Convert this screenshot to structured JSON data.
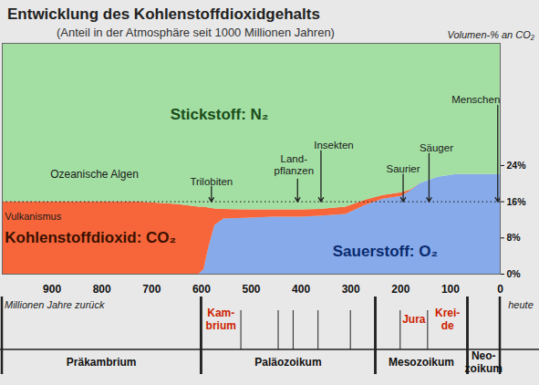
{
  "chart_data": {
    "type": "area",
    "title": "Entwicklung des Kohlenstoffdioxidgehalts",
    "subtitle": "(Anteil in der Atmosphäre seit 1000 Millionen Jahren)",
    "xlabel": "Millionen Jahre zurück",
    "ylabel": "Volumen-% an CO₂",
    "stacked": true,
    "grid": false,
    "x": [
      1000,
      900,
      800,
      730,
      650,
      605,
      595,
      585,
      573,
      555,
      500,
      455,
      400,
      363,
      310,
      270,
      235,
      198,
      180,
      161,
      125,
      88,
      0
    ],
    "xlim": [
      1000,
      0
    ],
    "xticks": [
      900,
      800,
      700,
      600,
      500,
      400,
      300,
      200,
      100,
      0
    ],
    "ylim": [
      0,
      51
    ],
    "yticks": [
      {
        "value": 0,
        "label": "0%"
      },
      {
        "value": 8,
        "label": "8%"
      },
      {
        "value": 16,
        "label": "16%"
      },
      {
        "value": 24,
        "label": "24%"
      }
    ],
    "series": [
      {
        "name": "Sauerstoff: O₂",
        "color": "#86aaea",
        "values": [
          0,
          0,
          0,
          0,
          0,
          0,
          1,
          6,
          10.8,
          12.2,
          12.4,
          12.6,
          12.6,
          12.8,
          13.2,
          15.2,
          16.6,
          17.2,
          18.4,
          20,
          21.4,
          22,
          22
        ]
      },
      {
        "name": "Kohlenstoffdioxid: CO₂",
        "color": "#f7663a",
        "values": [
          16,
          16,
          16,
          16,
          15.4,
          14.8,
          13.8,
          8.6,
          3.6,
          2.1,
          1.8,
          1.6,
          1.6,
          1.5,
          1.6,
          1.2,
          0.8,
          0.8,
          0.2,
          0,
          0,
          0,
          0
        ]
      },
      {
        "name": "Stickstoff: N₂",
        "color": "#a3dfa3",
        "values": [
          35,
          35,
          35,
          35,
          35.6,
          36.2,
          36.2,
          36.4,
          36.6,
          36.7,
          36.8,
          36.8,
          36.8,
          36.7,
          36.2,
          34.6,
          33.6,
          33,
          32.4,
          31,
          29.6,
          29,
          29
        ]
      }
    ],
    "reference_lines": [
      16
    ],
    "annotations": [
      {
        "text": "Trilobiten",
        "x": 580
      },
      {
        "text": "Land-\npflanzen",
        "x": 407
      },
      {
        "text": "Insekten",
        "x": 360
      },
      {
        "text": "Saurier",
        "x": 195
      },
      {
        "text": "Säuger",
        "x": 143
      },
      {
        "text": "Menschen",
        "x": 5
      }
    ],
    "notes": [
      "Ozeanische Algen",
      "Vulkanismus",
      "heute"
    ],
    "period_boundaries": [
      600,
      520,
      445,
      415,
      365,
      300,
      250,
      200,
      145,
      65
    ],
    "periods": [
      {
        "text": "Kam-\nbrium",
        "from": 600,
        "to": 520
      },
      {
        "text": "Jura",
        "from": 200,
        "to": 145
      },
      {
        "text": "Krei-\nde",
        "from": 145,
        "to": 65
      }
    ],
    "eras": [
      {
        "text": "Präkambrium",
        "from": 1000,
        "to": 600
      },
      {
        "text": "Paläozoikum",
        "from": 600,
        "to": 250
      },
      {
        "text": "Mesozoikum",
        "from": 250,
        "to": 65
      },
      {
        "text": "Neo-\nzoikum",
        "from": 65,
        "to": 0
      }
    ]
  }
}
